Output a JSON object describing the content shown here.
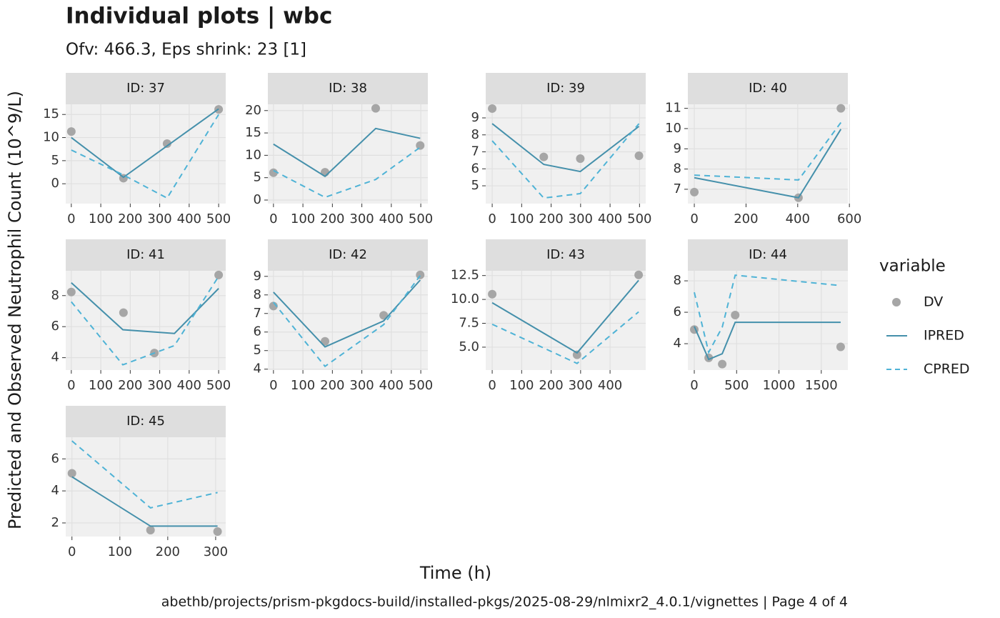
{
  "title": "Individual plots | wbc",
  "subtitle": "Ofv: 466.3, Eps shrink: 23 [1]",
  "x_label": "Time (h)",
  "y_label": "Predicted and Observed Neutrophil Count (10^9/L)",
  "caption": "abethb/projects/prism-pkgdocs-build/installed-pkgs/2025-08-29/nlmixr2_4.0.1/vignettes | Page 4 of 4",
  "legend": {
    "title": "variable",
    "items": [
      {
        "name": "DV",
        "color": "#a6a6a6",
        "style": "point"
      },
      {
        "name": "IPRED",
        "color": "#4590ab",
        "style": "solid"
      },
      {
        "name": "CPRED",
        "color": "#4fb3d6",
        "style": "dashed"
      }
    ]
  },
  "chart_data": [
    {
      "type": "line",
      "title": "ID: 37",
      "xlim": [
        -19,
        524
      ],
      "xticks": [
        0,
        100,
        200,
        300,
        400,
        500
      ],
      "ylim": [
        -4.3,
        17.2
      ],
      "yticks": [
        0,
        5,
        10,
        15
      ],
      "grid": true,
      "series": [
        {
          "name": "DV",
          "x": [
            0,
            177,
            325,
            500
          ],
          "values": [
            11.3,
            1.2,
            8.7,
            16.1
          ]
        },
        {
          "name": "IPRED",
          "x": [
            0,
            177,
            325,
            500
          ],
          "values": [
            10.0,
            1.4,
            8.2,
            16.2
          ]
        },
        {
          "name": "CPRED",
          "x": [
            0,
            177,
            325,
            500
          ],
          "values": [
            7.3,
            1.9,
            -3.1,
            15.0
          ]
        }
      ]
    },
    {
      "type": "line",
      "title": "ID: 38",
      "xlim": [
        -19,
        524
      ],
      "xticks": [
        0,
        100,
        200,
        300,
        400,
        500
      ],
      "ylim": [
        -0.8,
        21.4
      ],
      "yticks": [
        0,
        5,
        10,
        15,
        20
      ],
      "grid": true,
      "series": [
        {
          "name": "DV",
          "x": [
            0,
            175,
            347,
            498
          ],
          "values": [
            6.1,
            6.2,
            20.5,
            12.2
          ]
        },
        {
          "name": "IPRED",
          "x": [
            0,
            175,
            347,
            498
          ],
          "values": [
            12.5,
            5.3,
            16.0,
            13.8
          ]
        },
        {
          "name": "CPRED",
          "x": [
            0,
            175,
            347,
            498
          ],
          "values": [
            6.6,
            0.6,
            4.6,
            11.8
          ]
        }
      ]
    },
    {
      "type": "line",
      "title": "ID: 39",
      "xlim": [
        -22,
        521
      ],
      "xticks": [
        0,
        100,
        200,
        300,
        400,
        500
      ],
      "ylim": [
        3.95,
        9.8
      ],
      "yticks": [
        5,
        6,
        7,
        8,
        9
      ],
      "grid": true,
      "series": [
        {
          "name": "DV",
          "x": [
            0,
            175,
            299,
            498
          ],
          "values": [
            9.55,
            6.7,
            6.6,
            6.77
          ]
        },
        {
          "name": "IPRED",
          "x": [
            0,
            175,
            299,
            498
          ],
          "values": [
            8.66,
            6.26,
            5.84,
            8.5
          ]
        },
        {
          "name": "CPRED",
          "x": [
            0,
            175,
            299,
            498
          ],
          "values": [
            7.65,
            4.28,
            4.54,
            8.66
          ]
        }
      ]
    },
    {
      "type": "line",
      "title": "ID: 40",
      "xlim": [
        -25,
        594
      ],
      "xticks": [
        0,
        200,
        400,
        600
      ],
      "ylim": [
        6.29,
        11.2
      ],
      "yticks": [
        7,
        8,
        9,
        10,
        11
      ],
      "grid": true,
      "series": [
        {
          "name": "DV",
          "x": [
            0,
            403,
            567
          ],
          "values": [
            6.86,
            6.58,
            11.0
          ]
        },
        {
          "name": "IPRED",
          "x": [
            0,
            403,
            567
          ],
          "values": [
            7.57,
            6.58,
            9.97
          ]
        },
        {
          "name": "CPRED",
          "x": [
            0,
            403,
            567
          ],
          "values": [
            7.7,
            7.46,
            10.3
          ]
        }
      ]
    },
    {
      "type": "line",
      "title": "ID: 41",
      "xlim": [
        -19,
        524
      ],
      "xticks": [
        0,
        100,
        200,
        300,
        400,
        500
      ],
      "ylim": [
        3.2,
        9.6
      ],
      "yticks": [
        4,
        6,
        8
      ],
      "grid": true,
      "series": [
        {
          "name": "DV",
          "x": [
            0,
            177,
            282,
            500
          ],
          "values": [
            8.23,
            6.9,
            4.3,
            9.33
          ]
        },
        {
          "name": "IPRED",
          "x": [
            0,
            175,
            350,
            500
          ],
          "values": [
            8.83,
            5.8,
            5.56,
            8.46
          ]
        },
        {
          "name": "CPRED",
          "x": [
            0,
            175,
            350,
            500
          ],
          "values": [
            7.6,
            3.54,
            4.78,
            9.24
          ]
        }
      ]
    },
    {
      "type": "line",
      "title": "ID: 42",
      "xlim": [
        -19,
        524
      ],
      "xticks": [
        0,
        100,
        200,
        300,
        400,
        500
      ],
      "ylim": [
        3.95,
        9.3
      ],
      "yticks": [
        4,
        5,
        6,
        7,
        8,
        9
      ],
      "grid": true,
      "series": [
        {
          "name": "DV",
          "x": [
            0,
            175,
            374,
            498
          ],
          "values": [
            7.4,
            5.5,
            6.9,
            9.08
          ]
        },
        {
          "name": "IPRED",
          "x": [
            0,
            175,
            374,
            498
          ],
          "values": [
            8.15,
            5.2,
            6.6,
            8.8
          ]
        },
        {
          "name": "CPRED",
          "x": [
            0,
            175,
            374,
            498
          ],
          "values": [
            7.6,
            4.15,
            6.4,
            9.04
          ]
        }
      ]
    },
    {
      "type": "line",
      "title": "ID: 43",
      "xlim": [
        -22,
        521
      ],
      "xticks": [
        0,
        100,
        200,
        300,
        400
      ],
      "ylim": [
        2.6,
        13.0
      ],
      "yticks": [
        {
          "value": 5,
          "label": "5.0"
        },
        7.5,
        {
          "value": 10,
          "label": "10.0"
        },
        12.5
      ],
      "grid": true,
      "series": [
        {
          "name": "DV",
          "x": [
            0,
            288,
            497
          ],
          "values": [
            10.55,
            4.2,
            12.57
          ]
        },
        {
          "name": "IPRED",
          "x": [
            0,
            288,
            497
          ],
          "values": [
            9.65,
            4.4,
            12.0
          ]
        },
        {
          "name": "CPRED",
          "x": [
            0,
            288,
            497
          ],
          "values": [
            7.4,
            3.3,
            8.7
          ]
        }
      ]
    },
    {
      "type": "line",
      "title": "ID: 44",
      "xlim": [
        -76,
        1814
      ],
      "xticks": [
        0,
        500,
        1000,
        1500
      ],
      "ylim": [
        2.32,
        8.64
      ],
      "yticks": [
        4,
        6,
        8
      ],
      "grid": true,
      "series": [
        {
          "name": "DV",
          "x": [
            0,
            170,
            330,
            483,
            1729
          ],
          "values": [
            4.9,
            3.1,
            2.7,
            5.82,
            3.8
          ]
        },
        {
          "name": "IPRED",
          "x": [
            0,
            170,
            330,
            483,
            1729
          ],
          "values": [
            5.1,
            3.0,
            3.36,
            5.36,
            5.36
          ]
        },
        {
          "name": "CPRED",
          "x": [
            0,
            170,
            330,
            483,
            1729
          ],
          "values": [
            7.27,
            3.45,
            5.05,
            8.36,
            7.7
          ]
        }
      ]
    },
    {
      "type": "line",
      "title": "ID: 45",
      "xlim": [
        -13,
        321
      ],
      "xticks": [
        0,
        100,
        200,
        300
      ],
      "ylim": [
        1.15,
        7.35
      ],
      "yticks": [
        2,
        4,
        6
      ],
      "grid": true,
      "series": [
        {
          "name": "DV",
          "x": [
            0,
            164,
            304
          ],
          "values": [
            5.1,
            1.55,
            1.46
          ]
        },
        {
          "name": "IPRED",
          "x": [
            0,
            164,
            304
          ],
          "values": [
            4.88,
            1.8,
            1.8
          ]
        },
        {
          "name": "CPRED",
          "x": [
            0,
            164,
            304
          ],
          "values": [
            7.12,
            2.94,
            3.9
          ]
        }
      ]
    }
  ]
}
